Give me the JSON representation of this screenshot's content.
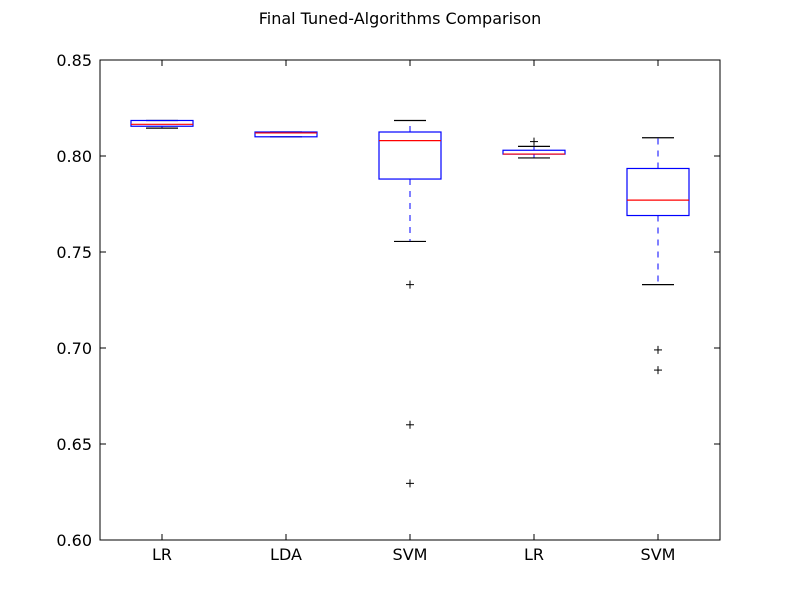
{
  "chart_data": {
    "type": "box",
    "title": "Final Tuned-Algorithms Comparison",
    "xlabel": "",
    "ylabel": "",
    "ylim": [
      0.6,
      0.85
    ],
    "y_ticks": [
      "0.60",
      "0.65",
      "0.70",
      "0.75",
      "0.80",
      "0.85"
    ],
    "y_tick_values": [
      0.6,
      0.65,
      0.7,
      0.75,
      0.8,
      0.85
    ],
    "categories": [
      "LR",
      "LDA",
      "SVM",
      "LR",
      "SVM"
    ],
    "boxes": [
      {
        "label": "LR",
        "whisker_low": 0.8145,
        "q1": 0.8155,
        "median": 0.8165,
        "q3": 0.8185,
        "whisker_high": 0.8185,
        "outliers": []
      },
      {
        "label": "LDA",
        "whisker_low": 0.81,
        "q1": 0.81,
        "median": 0.812,
        "q3": 0.8125,
        "whisker_high": 0.8125,
        "outliers": []
      },
      {
        "label": "SVM",
        "whisker_low": 0.7555,
        "q1": 0.788,
        "median": 0.808,
        "q3": 0.8125,
        "whisker_high": 0.8185,
        "outliers": [
          0.733,
          0.66,
          0.6295
        ]
      },
      {
        "label": "LR",
        "whisker_low": 0.799,
        "q1": 0.801,
        "median": 0.801,
        "q3": 0.803,
        "whisker_high": 0.805,
        "outliers": [
          0.8075
        ]
      },
      {
        "label": "SVM",
        "whisker_low": 0.733,
        "q1": 0.769,
        "median": 0.777,
        "q3": 0.7935,
        "whisker_high": 0.8095,
        "outliers": [
          0.699,
          0.6885
        ]
      }
    ],
    "colors": {
      "box": "#0000ff",
      "median": "#ff0000",
      "whisker": "#0000ff",
      "cap": "#000000",
      "flier": "#000000"
    },
    "grid": false,
    "legend": "none"
  }
}
